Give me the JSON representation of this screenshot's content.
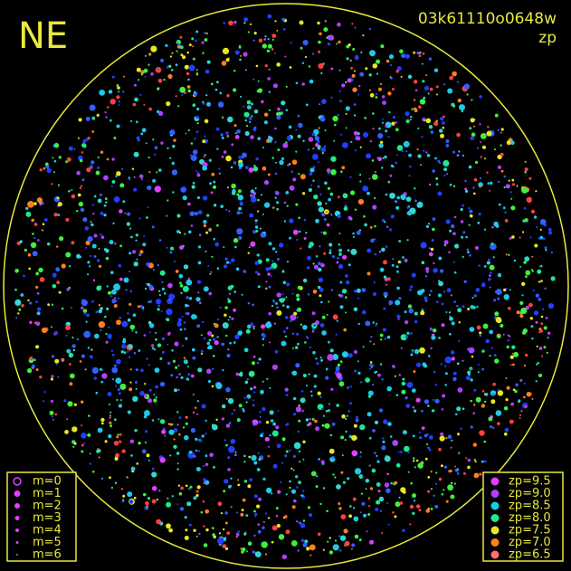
{
  "header": {
    "title": "NE",
    "frame_id": "03k61110o0648w",
    "mode": "zp"
  },
  "magnitude_legend": [
    "m=0",
    "m=1",
    "m=2",
    "m=3",
    "m=4",
    "m=5",
    "m=6"
  ],
  "zp_legend": [
    {
      "label": "zp=9.5",
      "color": "#e040ff"
    },
    {
      "label": "zp=9.0",
      "color": "#b040ff"
    },
    {
      "label": "zp=8.5",
      "color": "#20c8e8"
    },
    {
      "label": "zp=8.0",
      "color": "#20e890"
    },
    {
      "label": "zp=7.5",
      "color": "#e8e820"
    },
    {
      "label": "zp=7.0",
      "color": "#ff8020"
    },
    {
      "label": "zp=6.5",
      "color": "#ff7070"
    }
  ]
}
